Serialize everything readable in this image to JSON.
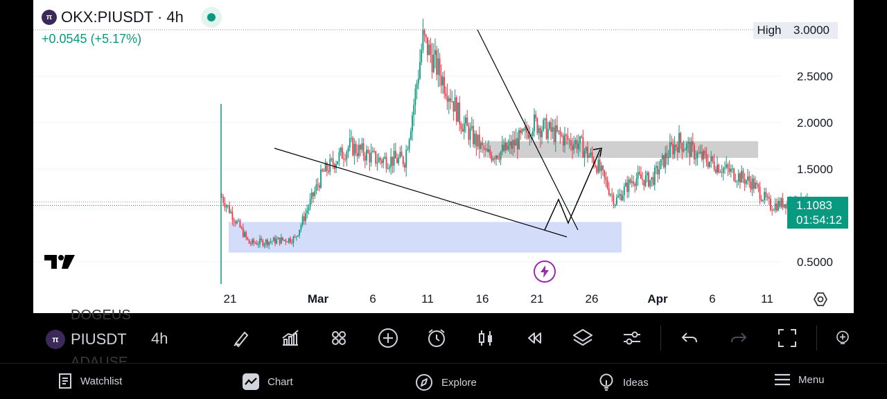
{
  "header": {
    "symbol_title": "OKX:PIUSDT · 4h",
    "change": "+0.0545 (+5.17%)"
  },
  "high_tag": {
    "label": "High",
    "value": "3.0000"
  },
  "price_tag": {
    "price": "1.1083",
    "countdown": "01:54:12"
  },
  "chart_data": {
    "type": "candlestick",
    "y_ticks": [
      "3.0000",
      "2.5000",
      "2.0000",
      "1.5000",
      "0.5000"
    ],
    "x_ticks": [
      "21",
      "Mar",
      "6",
      "11",
      "16",
      "21",
      "26",
      "Apr",
      "6",
      "11"
    ],
    "high": 3.0,
    "last_price": 1.1083,
    "close_path": [
      [
        0,
        1.2
      ],
      [
        3,
        0.7
      ],
      [
        8,
        0.75
      ],
      [
        11,
        1.45
      ],
      [
        14,
        1.75
      ],
      [
        17,
        1.6
      ],
      [
        20,
        1.6
      ],
      [
        21,
        2.2
      ],
      [
        22,
        2.9
      ],
      [
        23,
        2.7
      ],
      [
        24,
        2.5
      ],
      [
        25,
        2.3
      ],
      [
        26,
        2.05
      ],
      [
        27,
        1.9
      ],
      [
        29,
        1.65
      ],
      [
        31,
        1.7
      ],
      [
        33,
        1.85
      ],
      [
        34,
        2.0
      ],
      [
        36,
        1.9
      ],
      [
        38,
        1.8
      ],
      [
        39,
        1.78
      ],
      [
        41,
        1.55
      ],
      [
        43,
        1.15
      ],
      [
        45,
        1.4
      ],
      [
        47,
        1.38
      ],
      [
        49,
        1.7
      ],
      [
        50,
        1.8
      ],
      [
        52,
        1.65
      ],
      [
        54,
        1.55
      ],
      [
        56,
        1.45
      ],
      [
        58,
        1.35
      ],
      [
        60,
        1.1
      ],
      [
        62,
        1.15
      ],
      [
        64,
        1.12
      ],
      [
        65,
        0.95
      ],
      [
        67,
        1.0
      ],
      [
        68,
        1.1
      ]
    ],
    "trendline_upper": [
      [
        20,
        3.0
      ],
      [
        65,
        1.15
      ]
    ],
    "trendline_lower": [
      [
        15,
        1.75
      ],
      [
        68,
        0.8
      ]
    ],
    "resistance_zone": [
      1.62,
      1.8
    ],
    "support_zone": [
      0.6,
      0.93
    ]
  },
  "toolbar": {
    "symbol": "PIUSDT",
    "timeframe": "4h",
    "ghost_above": "DOGEUS",
    "ghost_below": "ADAUSE"
  },
  "nav": {
    "watchlist": "Watchlist",
    "chart": "Chart",
    "explore": "Explore",
    "ideas": "Ideas",
    "menu": "Menu"
  },
  "colors": {
    "up": "#089981",
    "down": "#f23645",
    "accent": "#089981"
  }
}
